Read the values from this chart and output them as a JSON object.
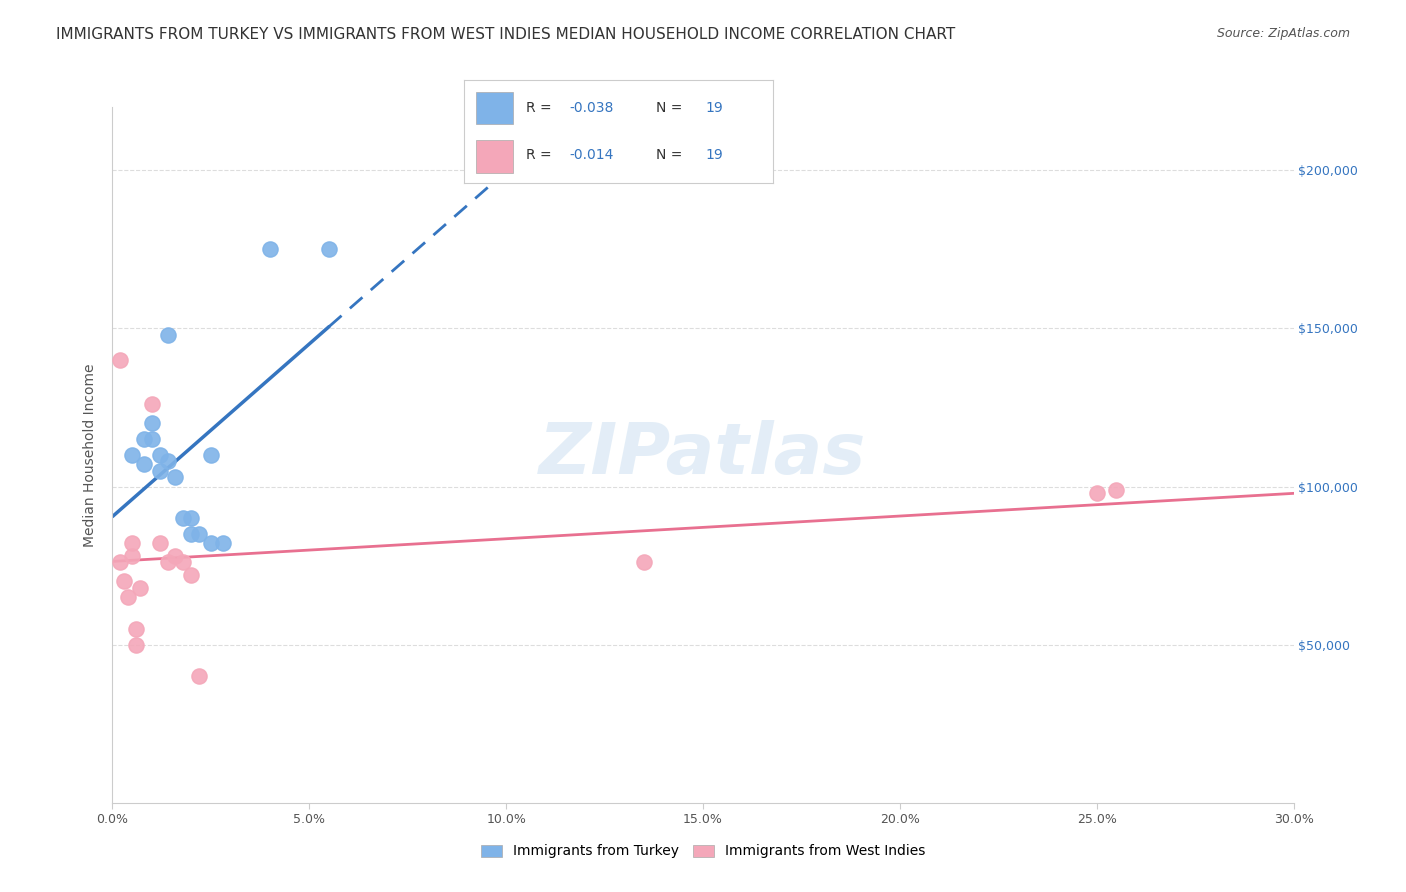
{
  "title": "IMMIGRANTS FROM TURKEY VS IMMIGRANTS FROM WEST INDIES MEDIAN HOUSEHOLD INCOME CORRELATION CHART",
  "source": "Source: ZipAtlas.com",
  "ylabel": "Median Household Income",
  "xlabel_ticks": [
    "0.0%",
    "5.0%",
    "10.0%",
    "15.0%",
    "20.0%",
    "25.0%",
    "30.0%"
  ],
  "xlabel_vals": [
    0.0,
    0.05,
    0.1,
    0.15,
    0.2,
    0.25,
    0.3
  ],
  "xlim": [
    0.0,
    0.3
  ],
  "ylim": [
    0,
    220000
  ],
  "ytick_labels": [
    "$50,000",
    "$100,000",
    "$150,000",
    "$200,000"
  ],
  "ytick_vals": [
    50000,
    100000,
    150000,
    200000
  ],
  "turkey_color": "#7fb3e8",
  "west_indies_color": "#f4a7b9",
  "turkey_line_color": "#3575c0",
  "west_indies_line_color": "#e87090",
  "R_turkey": -0.038,
  "N_turkey": 19,
  "R_west_indies": -0.014,
  "N_west_indies": 19,
  "watermark": "ZIPatlas",
  "turkey_x": [
    0.005,
    0.008,
    0.008,
    0.01,
    0.01,
    0.012,
    0.012,
    0.014,
    0.014,
    0.016,
    0.018,
    0.02,
    0.02,
    0.022,
    0.025,
    0.025,
    0.028,
    0.04,
    0.055
  ],
  "turkey_y": [
    110000,
    115000,
    107000,
    120000,
    115000,
    110000,
    105000,
    148000,
    108000,
    103000,
    90000,
    90000,
    85000,
    85000,
    110000,
    82000,
    82000,
    175000,
    175000
  ],
  "west_indies_x": [
    0.002,
    0.002,
    0.003,
    0.004,
    0.005,
    0.005,
    0.006,
    0.006,
    0.007,
    0.01,
    0.012,
    0.014,
    0.016,
    0.018,
    0.02,
    0.022,
    0.135,
    0.25,
    0.255
  ],
  "west_indies_y": [
    140000,
    76000,
    70000,
    65000,
    82000,
    78000,
    55000,
    50000,
    68000,
    126000,
    82000,
    76000,
    78000,
    76000,
    72000,
    40000,
    76000,
    98000,
    99000
  ],
  "background_color": "#ffffff",
  "grid_color": "#dddddd",
  "title_fontsize": 11,
  "source_fontsize": 9,
  "axis_label_fontsize": 10,
  "tick_fontsize": 9,
  "watermark_color": "#c8ddf0",
  "watermark_fontsize": 52
}
